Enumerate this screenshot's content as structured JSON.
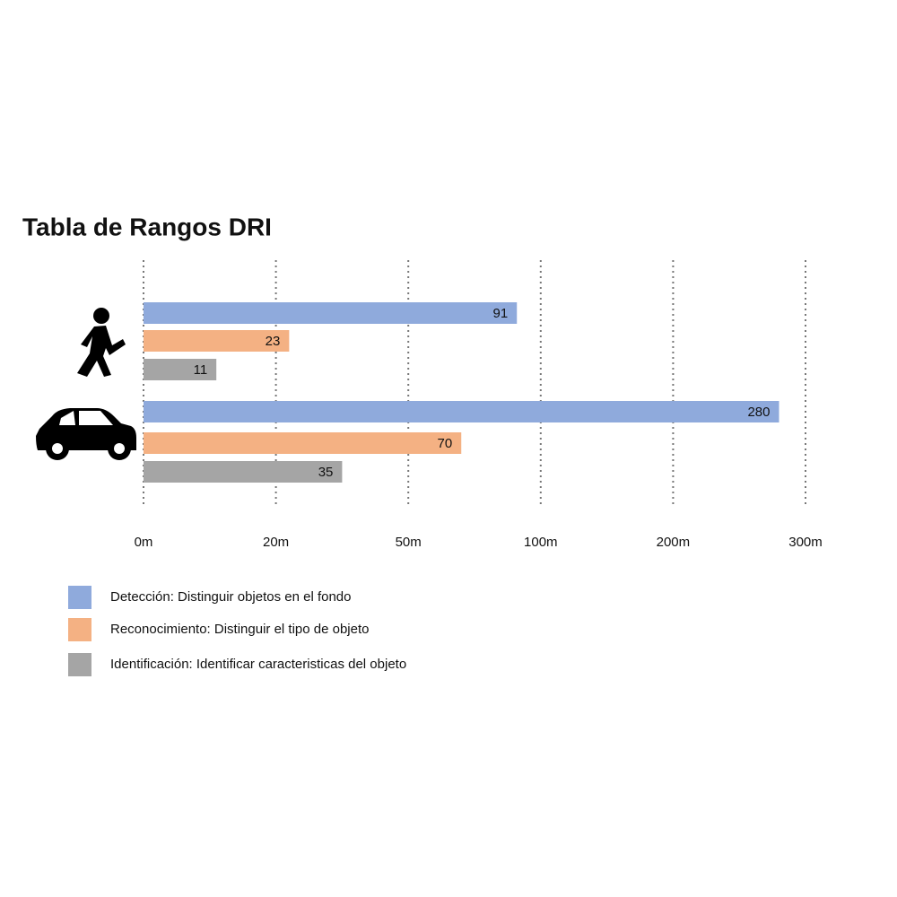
{
  "chart_data": {
    "type": "bar",
    "orientation": "horizontal",
    "title": "Tabla de Rangos DRI",
    "categories": [
      null,
      null
    ],
    "series": [
      {
        "name": "Detección: Distinguir objetos en el fondo",
        "color": "#8faadc",
        "values": [
          91,
          280
        ]
      },
      {
        "name": "Reconocimiento: Distinguir el tipo de objeto",
        "color": "#f4b183",
        "values": [
          23,
          70
        ]
      },
      {
        "name": "Identificación: Identificar caracteristicas del objeto",
        "color": "#a5a5a5",
        "values": [
          11,
          35
        ]
      }
    ],
    "xlim": [
      0,
      300
    ],
    "xticks": [
      {
        "value": 0,
        "label": "0m"
      },
      {
        "value": 20,
        "label": "20m"
      },
      {
        "value": 50,
        "label": "50m"
      },
      {
        "value": 100,
        "label": "100m"
      },
      {
        "value": 200,
        "label": "200m"
      },
      {
        "value": 300,
        "label": "300m"
      }
    ],
    "grid": true,
    "legend": "bottom"
  }
}
